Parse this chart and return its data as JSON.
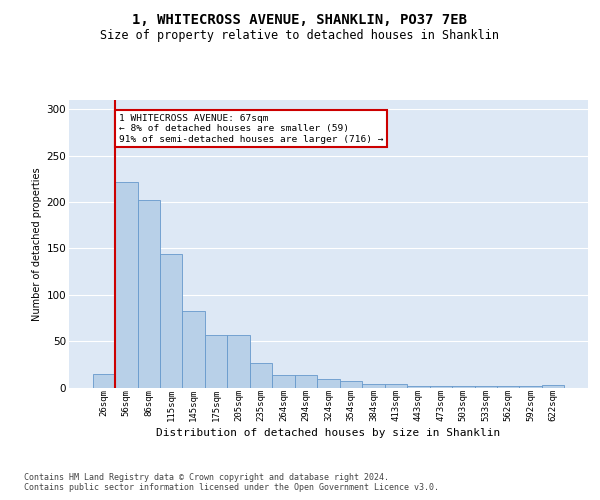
{
  "title": "1, WHITECROSS AVENUE, SHANKLIN, PO37 7EB",
  "subtitle": "Size of property relative to detached houses in Shanklin",
  "xlabel": "Distribution of detached houses by size in Shanklin",
  "ylabel": "Number of detached properties",
  "bar_heights": [
    15,
    222,
    202,
    144,
    82,
    57,
    57,
    26,
    13,
    13,
    9,
    7,
    4,
    4,
    2,
    2,
    2,
    2,
    2,
    2,
    3
  ],
  "bin_labels": [
    "26sqm",
    "56sqm",
    "86sqm",
    "115sqm",
    "145sqm",
    "175sqm",
    "205sqm",
    "235sqm",
    "264sqm",
    "294sqm",
    "324sqm",
    "354sqm",
    "384sqm",
    "413sqm",
    "443sqm",
    "473sqm",
    "503sqm",
    "533sqm",
    "562sqm",
    "592sqm",
    "622sqm"
  ],
  "bar_color": "#b8d0e8",
  "bar_edge_color": "#6699cc",
  "vline_x": 0.5,
  "vline_color": "#cc0000",
  "annotation_line1": "1 WHITECROSS AVENUE: 67sqm",
  "annotation_line2": "← 8% of detached houses are smaller (59)",
  "annotation_line3": "91% of semi-detached houses are larger (716) →",
  "annotation_box_fc": "#ffffff",
  "annotation_box_ec": "#cc0000",
  "background_color": "#dde8f5",
  "ylim_max": 310,
  "yticks": [
    0,
    50,
    100,
    150,
    200,
    250,
    300
  ],
  "footer_line1": "Contains HM Land Registry data © Crown copyright and database right 2024.",
  "footer_line2": "Contains public sector information licensed under the Open Government Licence v3.0."
}
